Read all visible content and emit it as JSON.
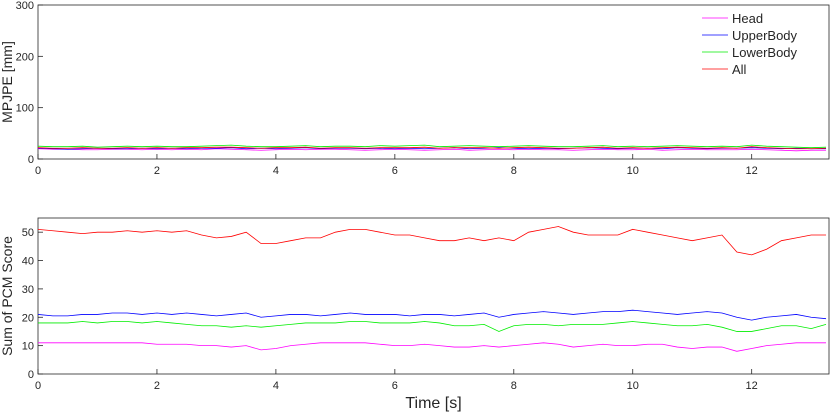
{
  "chart_data": [
    {
      "type": "line",
      "ylabel": "MPJPE [mm]",
      "legend": "upper right",
      "xlim": [
        0,
        13.3
      ],
      "xticks": [
        0,
        2,
        4,
        6,
        8,
        10,
        12
      ],
      "ylim": [
        0,
        300
      ],
      "yticks": [
        0,
        100,
        200,
        300
      ],
      "x": [
        0,
        0.25,
        0.5,
        0.75,
        1,
        1.25,
        1.5,
        1.75,
        2,
        2.25,
        2.5,
        2.75,
        3,
        3.25,
        3.5,
        3.75,
        4,
        4.25,
        4.5,
        4.75,
        5,
        5.25,
        5.5,
        5.75,
        6,
        6.25,
        6.5,
        6.75,
        7,
        7.25,
        7.5,
        7.75,
        8,
        8.25,
        8.5,
        8.75,
        9,
        9.25,
        9.5,
        9.75,
        10,
        10.25,
        10.5,
        10.75,
        11,
        11.25,
        11.5,
        11.75,
        12,
        12.25,
        12.5,
        12.75,
        13,
        13.25
      ],
      "series": [
        {
          "name": "Head",
          "color": "#ff00ff",
          "values": [
            20,
            19,
            19,
            18,
            18,
            19,
            19,
            18,
            19,
            18,
            19,
            18,
            20,
            19,
            18,
            17,
            18,
            19,
            18,
            19,
            19,
            18,
            17,
            18,
            19,
            18,
            17,
            18,
            19,
            17,
            18,
            19,
            18,
            19,
            18,
            18,
            17,
            18,
            19,
            18,
            18,
            19,
            17,
            18,
            19,
            18,
            18,
            18,
            19,
            18,
            17,
            16,
            17,
            17
          ]
        },
        {
          "name": "UpperBody",
          "color": "#0000ff",
          "values": [
            21,
            20,
            19,
            20,
            21,
            20,
            20,
            21,
            20,
            21,
            20,
            21,
            21,
            22,
            20,
            21,
            20,
            21,
            22,
            20,
            21,
            21,
            20,
            21,
            20,
            21,
            20,
            21,
            22,
            20,
            21,
            22,
            21,
            20,
            21,
            20,
            21,
            22,
            21,
            20,
            21,
            21,
            20,
            22,
            21,
            20,
            21,
            21,
            22,
            21,
            20,
            21,
            20,
            20
          ]
        },
        {
          "name": "LowerBody",
          "color": "#00ee00",
          "values": [
            25,
            24,
            24,
            25,
            23,
            24,
            25,
            24,
            25,
            24,
            24,
            25,
            26,
            27,
            25,
            24,
            24,
            25,
            26,
            24,
            25,
            25,
            24,
            26,
            25,
            26,
            27,
            24,
            25,
            26,
            25,
            24,
            25,
            26,
            25,
            24,
            24,
            25,
            26,
            24,
            25,
            24,
            25,
            26,
            25,
            24,
            25,
            24,
            27,
            25,
            24,
            23,
            22,
            23
          ]
        },
        {
          "name": "All",
          "color": "#ff0000",
          "values": [
            22,
            21,
            21,
            22,
            21,
            21,
            22,
            21,
            22,
            21,
            22,
            22,
            23,
            23,
            22,
            21,
            22,
            22,
            23,
            21,
            22,
            22,
            21,
            22,
            22,
            22,
            23,
            21,
            22,
            22,
            22,
            21,
            22,
            23,
            22,
            21,
            21,
            22,
            23,
            21,
            22,
            21,
            22,
            23,
            22,
            21,
            22,
            21,
            24,
            22,
            21,
            20,
            20,
            21
          ]
        }
      ]
    },
    {
      "type": "line",
      "ylabel": "Sum of PCM Score",
      "xlabel": "Time [s]",
      "xlim": [
        0,
        13.3
      ],
      "xticks": [
        0,
        2,
        4,
        6,
        8,
        10,
        12
      ],
      "ylim": [
        0,
        55
      ],
      "yticks": [
        0,
        10,
        20,
        30,
        40,
        50
      ],
      "x": [
        0,
        0.25,
        0.5,
        0.75,
        1,
        1.25,
        1.5,
        1.75,
        2,
        2.25,
        2.5,
        2.75,
        3,
        3.25,
        3.5,
        3.75,
        4,
        4.25,
        4.5,
        4.75,
        5,
        5.25,
        5.5,
        5.75,
        6,
        6.25,
        6.5,
        6.75,
        7,
        7.25,
        7.5,
        7.75,
        8,
        8.25,
        8.5,
        8.75,
        9,
        9.25,
        9.5,
        9.75,
        10,
        10.25,
        10.5,
        10.75,
        11,
        11.25,
        11.5,
        11.75,
        12,
        12.25,
        12.5,
        12.75,
        13,
        13.25
      ],
      "series": [
        {
          "color": "#ff00ff",
          "values": [
            11,
            11,
            11,
            11,
            11,
            11,
            11,
            11,
            10.5,
            10.5,
            10.5,
            10,
            10,
            9.5,
            10,
            8.5,
            9,
            10,
            10.5,
            11,
            11,
            11,
            11,
            10.5,
            10,
            10,
            10.5,
            10,
            9.5,
            9.5,
            10,
            9.5,
            10,
            10.5,
            11,
            10.5,
            9.5,
            10,
            10.5,
            10,
            10,
            10.5,
            10.5,
            9.5,
            9,
            9.5,
            9.5,
            8,
            9,
            10,
            10.5,
            11,
            11,
            11
          ]
        },
        {
          "color": "#0000ff",
          "values": [
            21,
            20.5,
            20.5,
            21,
            21,
            21.5,
            21.5,
            21,
            21.5,
            21,
            21.5,
            21,
            20.5,
            21,
            21.5,
            20,
            20.5,
            21,
            21,
            20.5,
            21,
            21.5,
            21,
            21,
            21,
            20.5,
            21,
            21,
            20.5,
            21,
            21.5,
            20,
            21,
            21.5,
            22,
            21.5,
            21,
            21.5,
            22,
            22,
            22.5,
            22,
            21.5,
            21,
            21.5,
            22,
            21.5,
            20,
            19,
            20,
            20.5,
            21,
            20,
            19.5
          ]
        },
        {
          "color": "#00ee00",
          "values": [
            18,
            18,
            18,
            18.5,
            18,
            18.5,
            18.5,
            18,
            18.5,
            18,
            17.5,
            17,
            17,
            16.5,
            17,
            16.5,
            17,
            17.5,
            18,
            18,
            18,
            18.5,
            18.5,
            18,
            18,
            18,
            18.5,
            18,
            17,
            17,
            17.5,
            15,
            17,
            17.5,
            17.5,
            17,
            17.5,
            17.5,
            17.5,
            18,
            18.5,
            18,
            17.5,
            17,
            17,
            17.5,
            16.5,
            15,
            15,
            16,
            17,
            17,
            16,
            17.5
          ]
        },
        {
          "color": "#ff0000",
          "values": [
            51,
            50.5,
            50,
            49.5,
            50,
            50,
            50.5,
            50,
            50.5,
            50,
            50.5,
            49,
            48,
            48.5,
            50,
            46,
            46,
            47,
            48,
            48,
            50,
            51,
            51,
            50,
            49,
            49,
            48,
            47,
            47,
            48,
            47,
            48,
            47,
            50,
            51,
            52,
            50,
            49,
            49,
            49,
            51,
            50,
            49,
            48,
            47,
            48,
            49,
            43,
            42,
            44,
            47,
            48,
            49,
            49
          ]
        }
      ]
    }
  ]
}
